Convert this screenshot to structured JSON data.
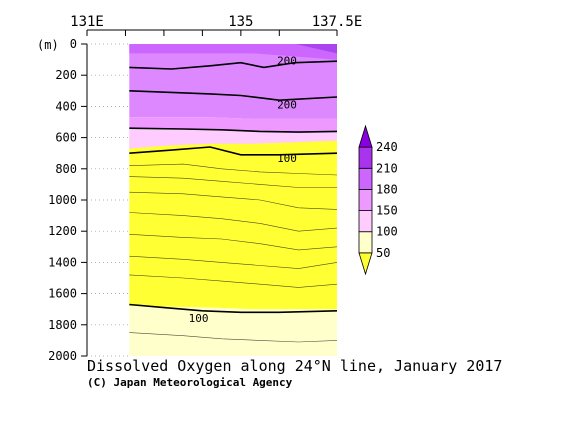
{
  "chart_data": {
    "type": "contour",
    "title": "Dissolved Oxygen along 24°N line, January 2017",
    "credit": "(C) Japan Meteorological Agency",
    "x_axis": {
      "range": [
        131,
        137.5
      ],
      "ticks": [
        131,
        132,
        133,
        134,
        135,
        136,
        137.5
      ],
      "tick_labels": [
        "131E",
        "",
        "",
        "",
        "135",
        "",
        "137.5E"
      ]
    },
    "y_axis": {
      "label": "(m)",
      "range": [
        0,
        2000
      ],
      "inverted": true,
      "ticks": [
        0,
        200,
        400,
        600,
        800,
        1000,
        1200,
        1400,
        1600,
        1800,
        2000
      ],
      "tick_labels": [
        "0",
        "200",
        "400",
        "600",
        "800",
        "1000",
        "1200",
        "1400",
        "1600",
        "1800",
        "2000"
      ]
    },
    "data_extent": {
      "lon_min": 132.1,
      "lon_max": 137.5
    },
    "colorbar": {
      "levels": [
        50,
        100,
        150,
        180,
        210,
        240
      ],
      "labels": [
        "50",
        "100",
        "150",
        "180",
        "210",
        "240"
      ],
      "colors": [
        "#ffff33",
        "#ffffcc",
        "#ffccff",
        "#ee99ff",
        "#cc66ff",
        "#aa33ee",
        "#8800dd"
      ]
    },
    "bands": [
      {
        "name": "below-50",
        "color": "#ffff33",
        "top": [
          590,
          590,
          590,
          590,
          590,
          590
        ],
        "bottom": [
          1680,
          1685,
          1690,
          1700,
          1700,
          1700
        ]
      },
      {
        "name": "50-100",
        "color": "#ffffcc",
        "top": [
          1680,
          1685,
          1690,
          1700,
          1700,
          1700
        ],
        "bottom": [
          2000,
          2000,
          2000,
          2000,
          2000,
          2000
        ]
      },
      {
        "name": "100-150",
        "color": "#ffccff",
        "top": [
          540,
          545,
          550,
          560,
          560,
          560
        ],
        "bottom": [
          670,
          650,
          640,
          640,
          630,
          620
        ]
      },
      {
        "name": "150-180",
        "color": "#ee99ff",
        "top": [
          470,
          470,
          470,
          480,
          480,
          480
        ],
        "bottom": [
          540,
          545,
          550,
          560,
          560,
          560
        ]
      },
      {
        "name": "180-210",
        "color": "#dd88ff",
        "top": [
          0,
          0,
          0,
          0,
          0,
          0
        ],
        "bottom": [
          470,
          470,
          470,
          480,
          480,
          480
        ]
      },
      {
        "name": "210-240",
        "color": "#cc66ff",
        "top": [
          0,
          0,
          0,
          0,
          0,
          0
        ],
        "bottom": [
          60,
          60,
          60,
          60,
          80,
          100
        ]
      },
      {
        "name": "above-240",
        "color": "#aa44ee",
        "top": [
          0,
          0,
          0,
          0,
          0,
          0
        ],
        "bottom": [
          0,
          0,
          0,
          0,
          0,
          60
        ]
      }
    ],
    "contours": [
      {
        "value": 200,
        "lon": [
          132.1,
          133.2,
          134.2,
          135.0,
          135.6,
          136.4,
          137.5
        ],
        "depth": [
          150,
          160,
          140,
          120,
          150,
          120,
          110
        ],
        "bold": true,
        "label": "200",
        "label_at": [
          136.2,
          120
        ]
      },
      {
        "value": 200,
        "lon": [
          132.1,
          133.2,
          134.2,
          135.0,
          136.0,
          137.5
        ],
        "depth": [
          300,
          310,
          320,
          330,
          360,
          340
        ],
        "bold": true,
        "label": "200",
        "label_at": [
          136.2,
          400
        ]
      },
      {
        "value": 150,
        "lon": [
          132.1,
          133.5,
          134.5,
          135.5,
          136.5,
          137.5
        ],
        "depth": [
          540,
          545,
          550,
          560,
          565,
          560
        ],
        "bold": true
      },
      {
        "value": 100,
        "lon": [
          132.1,
          133.2,
          134.2,
          135.0,
          136.0,
          137.5
        ],
        "depth": [
          700,
          680,
          660,
          710,
          710,
          700
        ],
        "bold": true,
        "label": "100",
        "label_at": [
          136.2,
          745
        ]
      },
      {
        "value": 90,
        "lon": [
          132.1,
          133.5,
          134.5,
          135.5,
          136.5,
          137.5
        ],
        "depth": [
          780,
          770,
          800,
          820,
          830,
          840
        ]
      },
      {
        "value": 80,
        "lon": [
          132.1,
          133.5,
          134.5,
          135.5,
          136.5,
          137.5
        ],
        "depth": [
          850,
          860,
          880,
          900,
          920,
          920
        ]
      },
      {
        "value": 70,
        "lon": [
          132.1,
          133.5,
          134.5,
          135.5,
          136.5,
          137.5
        ],
        "depth": [
          950,
          960,
          980,
          1000,
          1050,
          1060
        ]
      },
      {
        "value": 65,
        "lon": [
          132.1,
          133.5,
          134.5,
          135.5,
          136.5,
          137.5
        ],
        "depth": [
          1080,
          1100,
          1120,
          1150,
          1200,
          1180
        ]
      },
      {
        "value": 60,
        "lon": [
          132.1,
          133.5,
          134.5,
          135.5,
          136.5,
          137.5
        ],
        "depth": [
          1220,
          1240,
          1250,
          1280,
          1320,
          1300
        ]
      },
      {
        "value": 55,
        "lon": [
          132.1,
          133.5,
          134.5,
          135.5,
          136.5,
          137.5
        ],
        "depth": [
          1360,
          1380,
          1400,
          1420,
          1440,
          1400
        ]
      },
      {
        "value": 50,
        "lon": [
          132.1,
          133.5,
          134.5,
          135.5,
          136.5,
          137.5
        ],
        "depth": [
          1480,
          1500,
          1520,
          1540,
          1560,
          1540
        ]
      },
      {
        "value": 100,
        "lon": [
          132.1,
          133.0,
          134.0,
          135.0,
          136.0,
          137.5
        ],
        "depth": [
          1670,
          1690,
          1710,
          1720,
          1720,
          1710
        ],
        "bold": true,
        "label": "100",
        "label_at": [
          133.9,
          1770
        ]
      },
      {
        "value": 110,
        "lon": [
          132.1,
          133.5,
          134.5,
          135.5,
          136.5,
          137.5
        ],
        "depth": [
          1850,
          1870,
          1890,
          1900,
          1910,
          1900
        ]
      }
    ]
  }
}
